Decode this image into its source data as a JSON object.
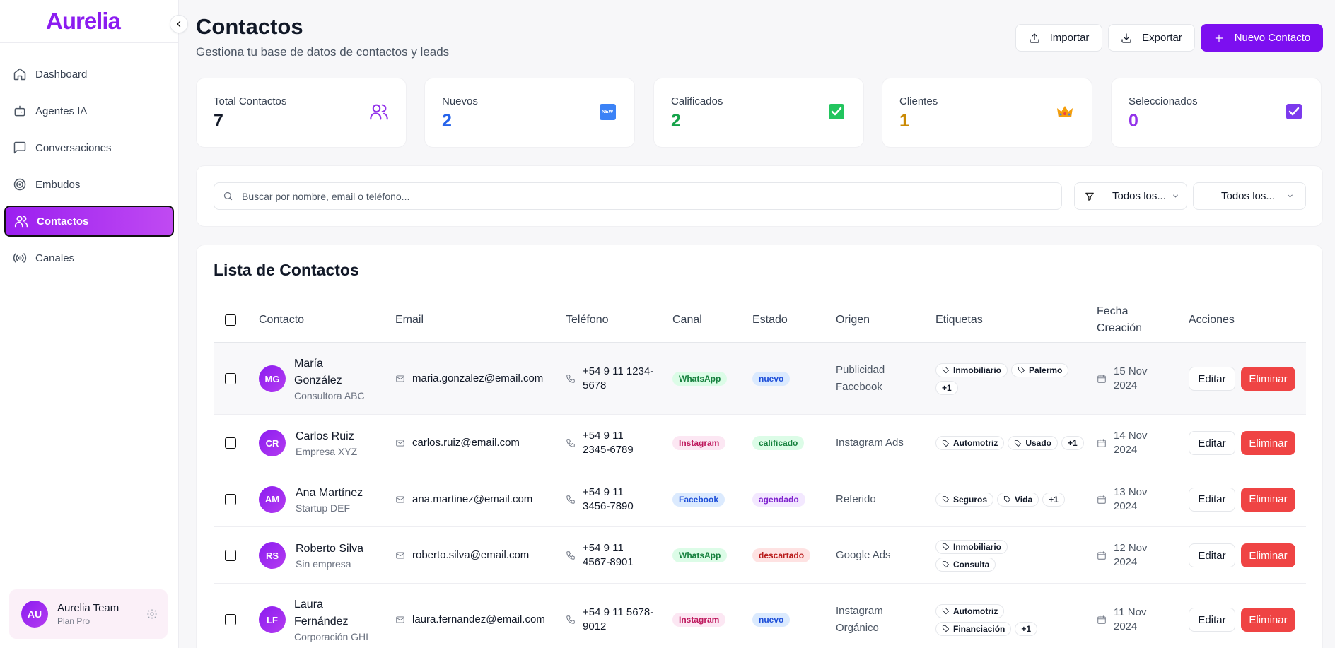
{
  "sidebar": {
    "logo": "Aurelia",
    "items": [
      {
        "label": "Dashboard",
        "icon": "home-icon"
      },
      {
        "label": "Agentes IA",
        "icon": "bot-icon"
      },
      {
        "label": "Conversaciones",
        "icon": "chat-icon"
      },
      {
        "label": "Embudos",
        "icon": "target-icon"
      },
      {
        "label": "Contactos",
        "icon": "users-icon",
        "active": true
      },
      {
        "label": "Canales",
        "icon": "broadcast-icon"
      }
    ],
    "user": {
      "initials": "AU",
      "name": "Aurelia Team",
      "plan": "Plan Pro"
    }
  },
  "header": {
    "title": "Contactos",
    "subtitle": "Gestiona tu base de datos de contactos y leads",
    "import_label": "Importar",
    "export_label": "Exportar",
    "new_label": "Nuevo Contacto"
  },
  "stats": [
    {
      "label": "Total Contactos",
      "value": "7",
      "color": "#111827",
      "icon": "users-icon"
    },
    {
      "label": "Nuevos",
      "value": "2",
      "color": "#2563eb",
      "icon": "new-icon",
      "icon_text": "NEW"
    },
    {
      "label": "Calificados",
      "value": "2",
      "color": "#16a34a",
      "icon": "check-box-icon"
    },
    {
      "label": "Clientes",
      "value": "1",
      "color": "#ca8a04",
      "icon": "crown-icon"
    },
    {
      "label": "Seleccionados",
      "value": "0",
      "color": "#9333ea",
      "icon": "checked-box-icon"
    }
  ],
  "filters": {
    "search_placeholder": "Buscar por nombre, email o teléfono...",
    "filter1": "Todos los...",
    "filter2": "Todos los..."
  },
  "table": {
    "title": "Lista de Contactos",
    "headers": {
      "contact": "Contacto",
      "email": "Email",
      "phone": "Teléfono",
      "channel": "Canal",
      "status": "Estado",
      "origin": "Origen",
      "tags": "Etiquetas",
      "date_line1": "Fecha",
      "date_line2": "Creación",
      "actions": "Acciones"
    },
    "edit_label": "Editar",
    "delete_label": "Eliminar",
    "rows": [
      {
        "initials": "MG",
        "name_l1": "María",
        "name_l2": "González",
        "company": "Consultora ABC",
        "email": "maria.gonzalez@email.com",
        "phone_l1": "+54 9 11 1234-",
        "phone_l2": "5678",
        "channel": "WhatsApp",
        "status": "nuevo",
        "origin_l1": "Publicidad",
        "origin_l2": "Facebook",
        "tags": [
          "Inmobiliario",
          "Palermo"
        ],
        "more": "+1",
        "date_l1": "15 Nov",
        "date_l2": "2024"
      },
      {
        "initials": "CR",
        "name_l1": "Carlos Ruiz",
        "name_l2": "",
        "company": "Empresa XYZ",
        "email": "carlos.ruiz@email.com",
        "phone_l1": "+54 9 11",
        "phone_l2": "2345-6789",
        "channel": "Instagram",
        "status": "calificado",
        "origin_l1": "Instagram Ads",
        "origin_l2": "",
        "tags": [
          "Automotriz",
          "Usado"
        ],
        "more": "+1",
        "date_l1": "14 Nov",
        "date_l2": "2024"
      },
      {
        "initials": "AM",
        "name_l1": "Ana Martínez",
        "name_l2": "",
        "company": "Startup DEF",
        "email": "ana.martinez@email.com",
        "phone_l1": "+54 9 11",
        "phone_l2": "3456-7890",
        "channel": "Facebook",
        "status": "agendado",
        "origin_l1": "Referido",
        "origin_l2": "",
        "tags": [
          "Seguros",
          "Vida"
        ],
        "more": "+1",
        "date_l1": "13 Nov",
        "date_l2": "2024"
      },
      {
        "initials": "RS",
        "name_l1": "Roberto Silva",
        "name_l2": "",
        "company": "Sin empresa",
        "email": "roberto.silva@email.com",
        "phone_l1": "+54 9 11",
        "phone_l2": "4567-8901",
        "channel": "WhatsApp",
        "status": "descartado",
        "origin_l1": "Google Ads",
        "origin_l2": "",
        "tags": [
          "Inmobiliario",
          "Consulta"
        ],
        "more": "",
        "date_l1": "12 Nov",
        "date_l2": "2024"
      },
      {
        "initials": "LF",
        "name_l1": "Laura",
        "name_l2": "Fernández",
        "company": "Corporación GHI",
        "email": "laura.fernandez@email.com",
        "phone_l1": "+54 9 11 5678-",
        "phone_l2": "9012",
        "channel": "Instagram",
        "status": "nuevo",
        "origin_l1": "Instagram",
        "origin_l2": "Orgánico",
        "tags": [
          "Automotriz",
          "Financiación"
        ],
        "more": "+1",
        "date_l1": "11 Nov",
        "date_l2": "2024"
      }
    ]
  },
  "colors": {
    "accent": "#7c0ff0",
    "danger": "#ef4444"
  }
}
